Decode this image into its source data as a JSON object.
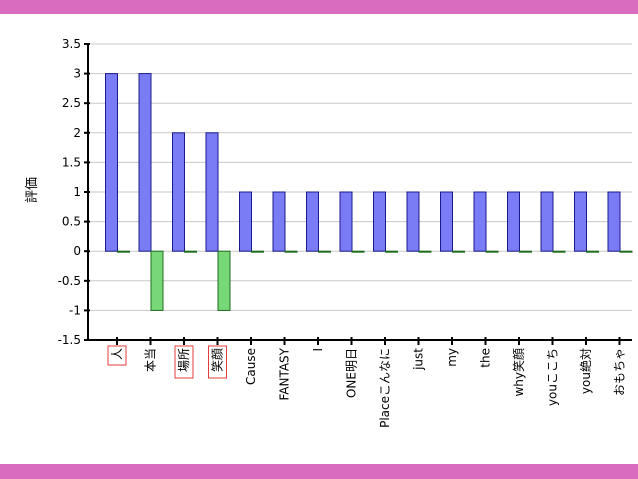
{
  "colors": {
    "frame_band": "#d96cbf",
    "series_positive": "#7a7cf5",
    "series_positive_edge": "#1a1a8c",
    "series_negative": "#78d878",
    "series_negative_edge": "#1d6b1d",
    "gridline": "#c8c8c8",
    "axis": "#000000",
    "highlight_box": "#e03c3c"
  },
  "chart_data": {
    "type": "bar",
    "title": "",
    "xlabel": "",
    "ylabel": "評価",
    "ylim": [
      -1.5,
      3.5
    ],
    "yticks": [
      3.5,
      3,
      2.5,
      2,
      1.5,
      1,
      0.5,
      0,
      -0.5,
      -1,
      -1.5
    ],
    "grid": true,
    "legend": "none",
    "categories": [
      "人",
      "本当",
      "場所",
      "笑顔",
      "Cause",
      "FANTASY",
      "I",
      "ONE明日",
      "Placeこんなに",
      "just",
      "my",
      "the",
      "why笑顔",
      "youここち",
      "you絶対",
      "おもちゃ"
    ],
    "highlighted_categories": [
      "人",
      "場所",
      "笑顔"
    ],
    "series": [
      {
        "values": [
          3,
          3,
          2,
          2,
          1,
          1,
          1,
          1,
          1,
          1,
          1,
          1,
          1,
          1,
          1,
          1
        ]
      },
      {
        "values": [
          0,
          -1,
          0,
          -1,
          0,
          0,
          0,
          0,
          0,
          0,
          0,
          0,
          0,
          0,
          0,
          0
        ]
      }
    ]
  }
}
